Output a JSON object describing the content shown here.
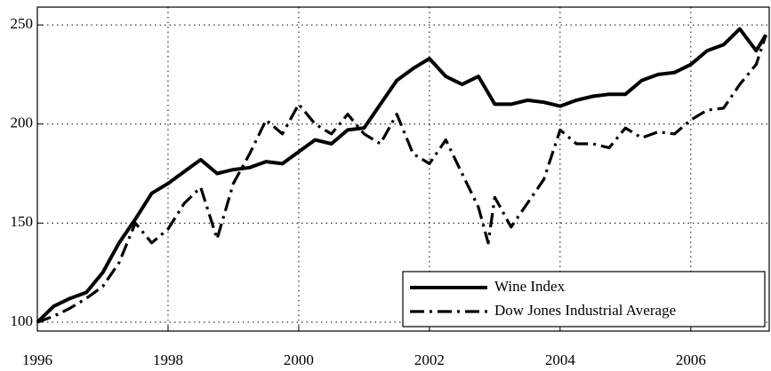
{
  "chart_data": {
    "type": "line",
    "xlim": [
      1996,
      2007.2
    ],
    "ylim": [
      95.5,
      259
    ],
    "xticks": [
      1996,
      1998,
      2000,
      2002,
      2004,
      2006
    ],
    "yticks": [
      100,
      150,
      200,
      250
    ],
    "grid": true,
    "legend": "lower right",
    "series": [
      {
        "name": "Wine Index",
        "color": "#000000",
        "style": "solid",
        "x": [
          1996,
          1996.25,
          1996.5,
          1996.75,
          1997,
          1997.25,
          1997.5,
          1997.75,
          1998,
          1998.25,
          1998.5,
          1998.75,
          1999,
          1999.25,
          1999.5,
          1999.75,
          2000,
          2000.25,
          2000.5,
          2000.75,
          2001,
          2001.25,
          2001.5,
          2001.75,
          2002,
          2002.25,
          2002.5,
          2002.75,
          2003,
          2003.25,
          2003.5,
          2003.75,
          2004,
          2004.25,
          2004.5,
          2004.75,
          2005,
          2005.25,
          2005.5,
          2005.75,
          2006,
          2006.25,
          2006.5,
          2006.75,
          2007,
          2007.15
        ],
        "values": [
          100,
          108,
          112,
          115,
          125,
          140,
          152,
          165,
          170,
          176,
          182,
          175,
          177,
          178,
          181,
          180,
          186,
          192,
          190,
          197,
          198,
          210,
          222,
          228,
          233,
          224,
          220,
          224,
          210,
          210,
          212,
          211,
          209,
          212,
          214,
          215,
          215,
          222,
          225,
          226,
          230,
          237,
          240,
          248,
          237,
          245
        ]
      },
      {
        "name": "Dow Jones Industrial Average",
        "color": "#000000",
        "style": "dashdot",
        "x": [
          1996,
          1996.25,
          1996.5,
          1996.75,
          1997,
          1997.25,
          1997.5,
          1997.75,
          1998,
          1998.25,
          1998.5,
          1998.75,
          1999,
          1999.25,
          1999.5,
          1999.75,
          2000,
          2000.25,
          2000.5,
          2000.75,
          2001,
          2001.25,
          2001.5,
          2001.75,
          2002,
          2002.25,
          2002.5,
          2002.75,
          2002.9,
          2003,
          2003.25,
          2003.5,
          2003.75,
          2004,
          2004.25,
          2004.5,
          2004.75,
          2005,
          2005.25,
          2005.5,
          2005.75,
          2006,
          2006.25,
          2006.5,
          2006.75,
          2007,
          2007.15
        ],
        "values": [
          100,
          103,
          107,
          112,
          118,
          130,
          150,
          140,
          147,
          160,
          168,
          142,
          170,
          185,
          202,
          195,
          210,
          200,
          195,
          205,
          195,
          190,
          205,
          185,
          180,
          192,
          175,
          158,
          140,
          163,
          148,
          160,
          172,
          197,
          190,
          190,
          188,
          198,
          193,
          196,
          195,
          202,
          207,
          208,
          220,
          230,
          245
        ]
      }
    ]
  }
}
